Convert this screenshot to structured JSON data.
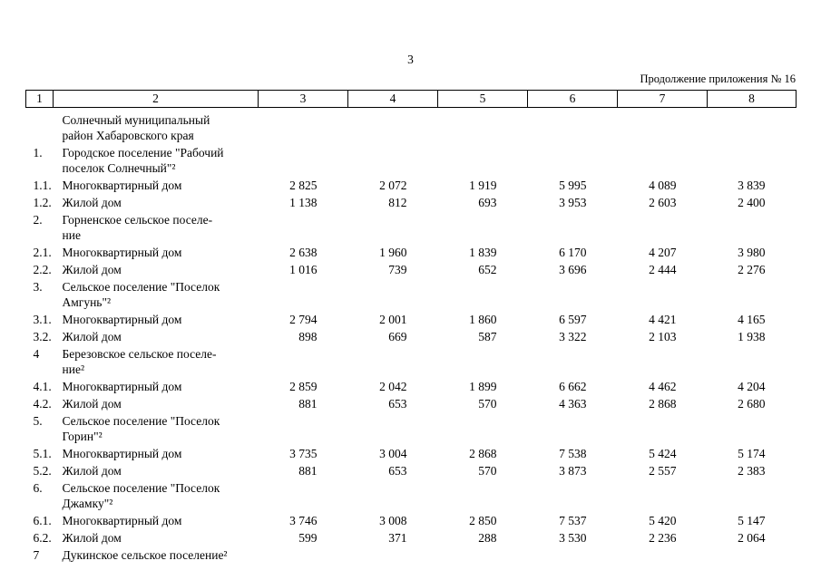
{
  "page": {
    "number": "3",
    "header_right": "Продолжение приложения № 16"
  },
  "table": {
    "column_numbers": [
      "1",
      "2",
      "3",
      "4",
      "5",
      "6",
      "7",
      "8"
    ],
    "rows": [
      {
        "num": "",
        "name": "Солнечный муниципальный\nрайон Хабаровского края",
        "values": []
      },
      {
        "num": "1.",
        "name": "Городское поселение \"Рабочий\nпоселок Солнечный\"²",
        "values": []
      },
      {
        "num": "1.1.",
        "name": "Многоквартирный дом",
        "values": [
          "2 825",
          "2 072",
          "1 919",
          "5 995",
          "4 089",
          "3 839"
        ]
      },
      {
        "num": "1.2.",
        "name": "Жилой дом",
        "values": [
          "1 138",
          "812",
          "693",
          "3 953",
          "2 603",
          "2 400"
        ]
      },
      {
        "num": "2.",
        "name": "Горненское сельское поселе-\nние",
        "values": []
      },
      {
        "num": "2.1.",
        "name": "Многоквартирный дом",
        "values": [
          "2 638",
          "1 960",
          "1 839",
          "6 170",
          "4 207",
          "3 980"
        ]
      },
      {
        "num": "2.2.",
        "name": "Жилой дом",
        "values": [
          "1 016",
          "739",
          "652",
          "3 696",
          "2 444",
          "2 276"
        ]
      },
      {
        "num": "3.",
        "name": "Сельское поселение \"Поселок\nАмгунь\"²",
        "values": []
      },
      {
        "num": "3.1.",
        "name": "Многоквартирный дом",
        "values": [
          "2 794",
          "2 001",
          "1 860",
          "6 597",
          "4 421",
          "4 165"
        ]
      },
      {
        "num": "3.2.",
        "name": "Жилой дом",
        "values": [
          "898",
          "669",
          "587",
          "3 322",
          "2 103",
          "1 938"
        ]
      },
      {
        "num": "4",
        "name": "Березовское сельское поселе-\nние²",
        "values": []
      },
      {
        "num": "4.1.",
        "name": "Многоквартирный дом",
        "values": [
          "2 859",
          "2 042",
          "1 899",
          "6 662",
          "4 462",
          "4 204"
        ]
      },
      {
        "num": "4.2.",
        "name": "Жилой дом",
        "values": [
          "881",
          "653",
          "570",
          "4 363",
          "2 868",
          "2 680"
        ]
      },
      {
        "num": "5.",
        "name": "Сельское поселение \"Поселок\nГорин\"²",
        "values": []
      },
      {
        "num": "5.1.",
        "name": "Многоквартирный дом",
        "values": [
          "3 735",
          "3 004",
          "2 868",
          "7 538",
          "5 424",
          "5 174"
        ]
      },
      {
        "num": "5.2.",
        "name": "Жилой дом",
        "values": [
          "881",
          "653",
          "570",
          "3 873",
          "2 557",
          "2 383"
        ]
      },
      {
        "num": "6.",
        "name": "Сельское поселение \"Поселок\nДжамку\"²",
        "values": []
      },
      {
        "num": "6.1.",
        "name": "Многоквартирный дом",
        "values": [
          "3 746",
          "3 008",
          "2 850",
          "7 537",
          "5 420",
          "5 147"
        ]
      },
      {
        "num": "6.2.",
        "name": "Жилой дом",
        "values": [
          "599",
          "371",
          "288",
          "3 530",
          "2 236",
          "2 064"
        ]
      },
      {
        "num": "7",
        "name": "Дукинское сельское поселение²",
        "values": []
      }
    ]
  }
}
